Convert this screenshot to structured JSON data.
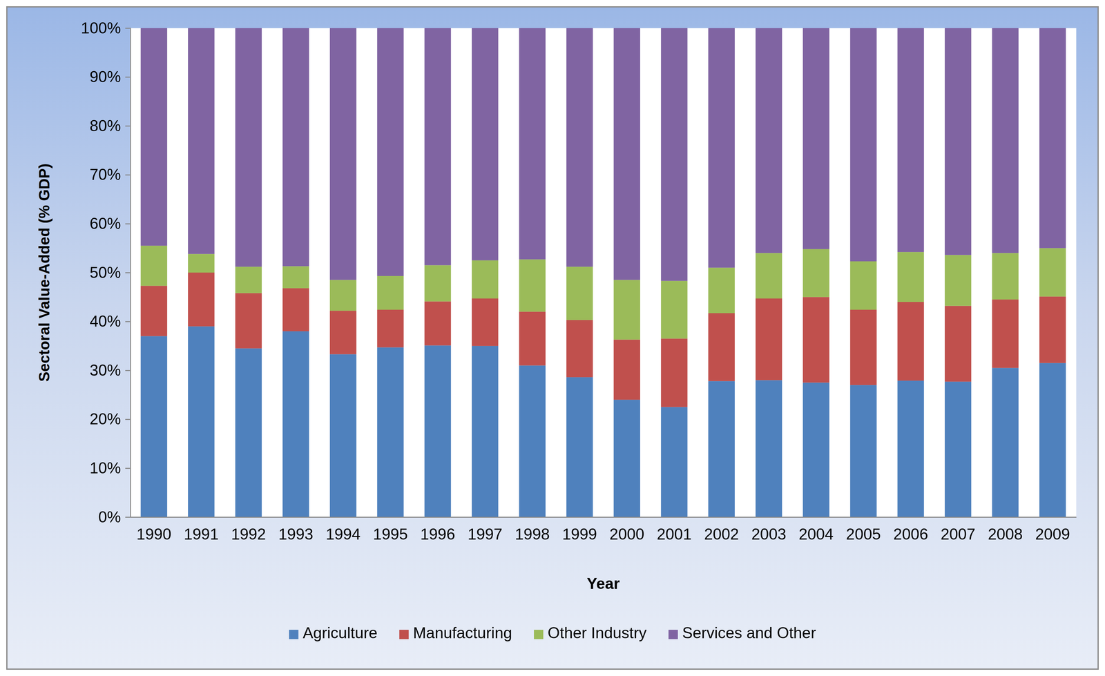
{
  "chart_data": {
    "type": "bar",
    "stacked": true,
    "legend": "bottom",
    "x_label": "Year",
    "y_label": "Sectoral Value-Added (% GDP)",
    "categories": [
      "1990",
      "1991",
      "1992",
      "1993",
      "1994",
      "1995",
      "1996",
      "1997",
      "1998",
      "1999",
      "2000",
      "2001",
      "2002",
      "2003",
      "2004",
      "2005",
      "2006",
      "2007",
      "2008",
      "2009"
    ],
    "series": [
      {
        "name": "Agriculture",
        "color": "#4f81bd",
        "values": [
          37.0,
          39.0,
          34.5,
          38.0,
          33.3,
          34.7,
          35.1,
          35.0,
          31.0,
          28.6,
          24.0,
          22.5,
          27.8,
          28.0,
          27.5,
          27.0,
          27.9,
          27.7,
          30.5,
          31.5
        ]
      },
      {
        "name": "Manufacturing",
        "color": "#c0504d",
        "values": [
          10.3,
          11.0,
          11.3,
          8.8,
          8.9,
          7.7,
          9.0,
          9.7,
          11.0,
          11.7,
          12.3,
          14.0,
          13.9,
          16.7,
          17.5,
          15.4,
          16.1,
          15.5,
          14.0,
          13.6
        ]
      },
      {
        "name": "Other Industry",
        "color": "#9bbb59",
        "values": [
          8.2,
          3.8,
          5.4,
          4.5,
          6.3,
          6.9,
          7.4,
          7.8,
          10.7,
          10.9,
          12.2,
          11.8,
          9.3,
          9.3,
          9.8,
          9.9,
          10.2,
          10.4,
          9.5,
          9.9
        ]
      },
      {
        "name": "Services and Other",
        "color": "#8064a2",
        "values": [
          44.5,
          46.2,
          48.8,
          48.7,
          51.5,
          50.7,
          48.5,
          47.5,
          47.3,
          48.8,
          51.5,
          51.7,
          49.0,
          46.0,
          45.2,
          47.7,
          45.8,
          46.4,
          46.0,
          45.0
        ]
      }
    ],
    "ylim": [
      0,
      100
    ],
    "yticks": [
      {
        "value": 0,
        "label": "0%"
      },
      {
        "value": 10,
        "label": "10%"
      },
      {
        "value": 20,
        "label": "20%"
      },
      {
        "value": 30,
        "label": "30%"
      },
      {
        "value": 40,
        "label": "40%"
      },
      {
        "value": 50,
        "label": "50%"
      },
      {
        "value": 60,
        "label": "60%"
      },
      {
        "value": 70,
        "label": "70%"
      },
      {
        "value": 80,
        "label": "80%"
      },
      {
        "value": 90,
        "label": "90%"
      },
      {
        "value": 100,
        "label": "100%"
      }
    ],
    "grid": false
  }
}
